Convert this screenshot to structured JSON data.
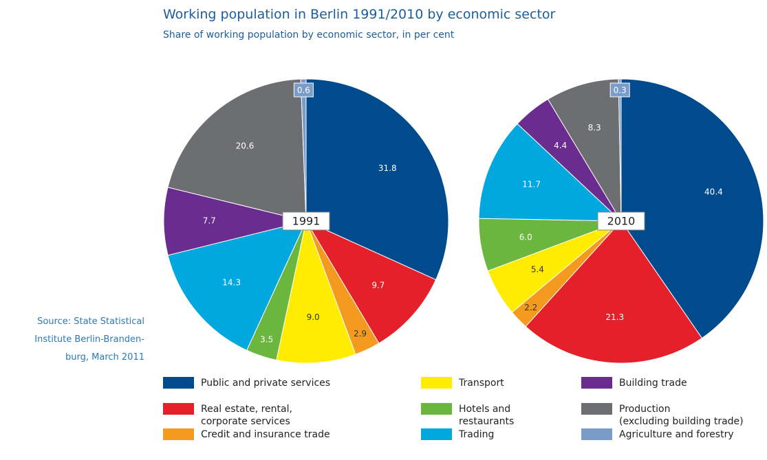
{
  "title": "Working population in Berlin 1991/2010 by economic sector",
  "subtitle": "Share of working population by economic sector, in per cent",
  "source": [
    "Source: State Statistical",
    "Institute Berlin-Branden-",
    "burg, March 2011"
  ],
  "legend": [
    {
      "name": "Public and private services",
      "color": "#004b8d"
    },
    {
      "name": "Real estate, rental,\ncorporate services",
      "color": "#e4202a"
    },
    {
      "name": "Credit and insurance trade",
      "color": "#f39a1f"
    },
    {
      "name": "Transport",
      "color": "#ffec00"
    },
    {
      "name": "Hotels and\nrestaurants",
      "color": "#6ab63f"
    },
    {
      "name": "Trading",
      "color": "#00a8df"
    },
    {
      "name": "Building trade",
      "color": "#6b2c8f"
    },
    {
      "name": "Production\n(excluding building trade)",
      "color": "#6d6e71"
    },
    {
      "name": "Agriculture and forestry",
      "color": "#7a9cc8"
    }
  ],
  "chart_data": [
    {
      "type": "pie",
      "label": "1991",
      "values": [
        31.8,
        9.7,
        2.9,
        9.0,
        3.5,
        14.3,
        7.7,
        20.6,
        0.6
      ],
      "value_labels": [
        "31.8",
        "9.7",
        "2.9",
        "9.0",
        "3.5",
        "14.3",
        "7.7",
        "20.6",
        "0.6"
      ]
    },
    {
      "type": "pie",
      "label": "2010",
      "values": [
        40.4,
        21.3,
        2.2,
        5.4,
        6.0,
        11.7,
        4.4,
        8.3,
        0.3
      ],
      "value_labels": [
        "40.4",
        "21.3",
        "2.2",
        "5.4",
        "6.0",
        "11.7",
        "4.4",
        "8.3",
        "0.3"
      ]
    }
  ]
}
